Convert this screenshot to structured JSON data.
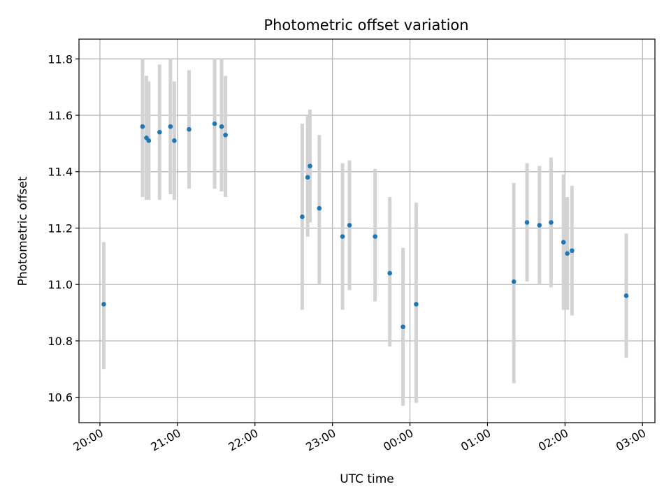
{
  "chart_data": {
    "type": "scatter",
    "title": "Photometric offset variation",
    "xlabel": "UTC time",
    "ylabel": "Photometric offset",
    "x_unit": "UTC time (hours; values past 24:00 wrap to next day)",
    "xlim": [
      19.73,
      27.16
    ],
    "ylim": [
      10.51,
      11.87
    ],
    "x_ticks": [
      {
        "value": 20,
        "label": "20:00"
      },
      {
        "value": 21,
        "label": "21:00"
      },
      {
        "value": 22,
        "label": "22:00"
      },
      {
        "value": 23,
        "label": "23:00"
      },
      {
        "value": 24,
        "label": "00:00"
      },
      {
        "value": 25,
        "label": "01:00"
      },
      {
        "value": 26,
        "label": "02:00"
      },
      {
        "value": 27,
        "label": "03:00"
      }
    ],
    "y_ticks": [
      {
        "value": 10.6,
        "label": "10.6"
      },
      {
        "value": 10.8,
        "label": "10.8"
      },
      {
        "value": 11.0,
        "label": "11.0"
      },
      {
        "value": 11.2,
        "label": "11.2"
      },
      {
        "value": 11.4,
        "label": "11.4"
      },
      {
        "value": 11.6,
        "label": "11.6"
      },
      {
        "value": 11.8,
        "label": "11.8"
      }
    ],
    "grid": true,
    "marker_color": "#1f77b4",
    "errorbar_color": "#d3d3d3",
    "points": [
      {
        "x": 20.05,
        "y": 10.93,
        "lo": 10.7,
        "hi": 11.15
      },
      {
        "x": 20.55,
        "y": 11.56,
        "lo": 11.31,
        "hi": 11.8
      },
      {
        "x": 20.6,
        "y": 11.52,
        "lo": 11.3,
        "hi": 11.74
      },
      {
        "x": 20.63,
        "y": 11.51,
        "lo": 11.3,
        "hi": 11.72
      },
      {
        "x": 20.77,
        "y": 11.54,
        "lo": 11.3,
        "hi": 11.78
      },
      {
        "x": 20.91,
        "y": 11.56,
        "lo": 11.32,
        "hi": 11.8
      },
      {
        "x": 20.96,
        "y": 11.51,
        "lo": 11.3,
        "hi": 11.72
      },
      {
        "x": 21.15,
        "y": 11.55,
        "lo": 11.34,
        "hi": 11.76
      },
      {
        "x": 21.48,
        "y": 11.57,
        "lo": 11.34,
        "hi": 11.8
      },
      {
        "x": 21.57,
        "y": 11.56,
        "lo": 11.33,
        "hi": 11.8
      },
      {
        "x": 21.62,
        "y": 11.53,
        "lo": 11.31,
        "hi": 11.74
      },
      {
        "x": 22.61,
        "y": 11.24,
        "lo": 10.91,
        "hi": 11.57
      },
      {
        "x": 22.68,
        "y": 11.38,
        "lo": 11.17,
        "hi": 11.6
      },
      {
        "x": 22.71,
        "y": 11.42,
        "lo": 11.22,
        "hi": 11.62
      },
      {
        "x": 22.83,
        "y": 11.27,
        "lo": 11.0,
        "hi": 11.53
      },
      {
        "x": 23.13,
        "y": 11.17,
        "lo": 10.91,
        "hi": 11.43
      },
      {
        "x": 23.22,
        "y": 11.21,
        "lo": 10.98,
        "hi": 11.44
      },
      {
        "x": 23.55,
        "y": 11.17,
        "lo": 10.94,
        "hi": 11.41
      },
      {
        "x": 23.74,
        "y": 11.04,
        "lo": 10.78,
        "hi": 11.31
      },
      {
        "x": 23.91,
        "y": 10.85,
        "lo": 10.57,
        "hi": 11.13
      },
      {
        "x": 24.08,
        "y": 10.93,
        "lo": 10.58,
        "hi": 11.29
      },
      {
        "x": 25.34,
        "y": 11.01,
        "lo": 10.65,
        "hi": 11.36
      },
      {
        "x": 25.51,
        "y": 11.22,
        "lo": 11.01,
        "hi": 11.43
      },
      {
        "x": 25.67,
        "y": 11.21,
        "lo": 11.0,
        "hi": 11.42
      },
      {
        "x": 25.82,
        "y": 11.22,
        "lo": 10.99,
        "hi": 11.45
      },
      {
        "x": 25.98,
        "y": 11.15,
        "lo": 10.91,
        "hi": 11.39
      },
      {
        "x": 26.03,
        "y": 11.11,
        "lo": 10.91,
        "hi": 11.31
      },
      {
        "x": 26.09,
        "y": 11.12,
        "lo": 10.89,
        "hi": 11.35
      },
      {
        "x": 26.79,
        "y": 10.96,
        "lo": 10.74,
        "hi": 11.18
      }
    ]
  }
}
